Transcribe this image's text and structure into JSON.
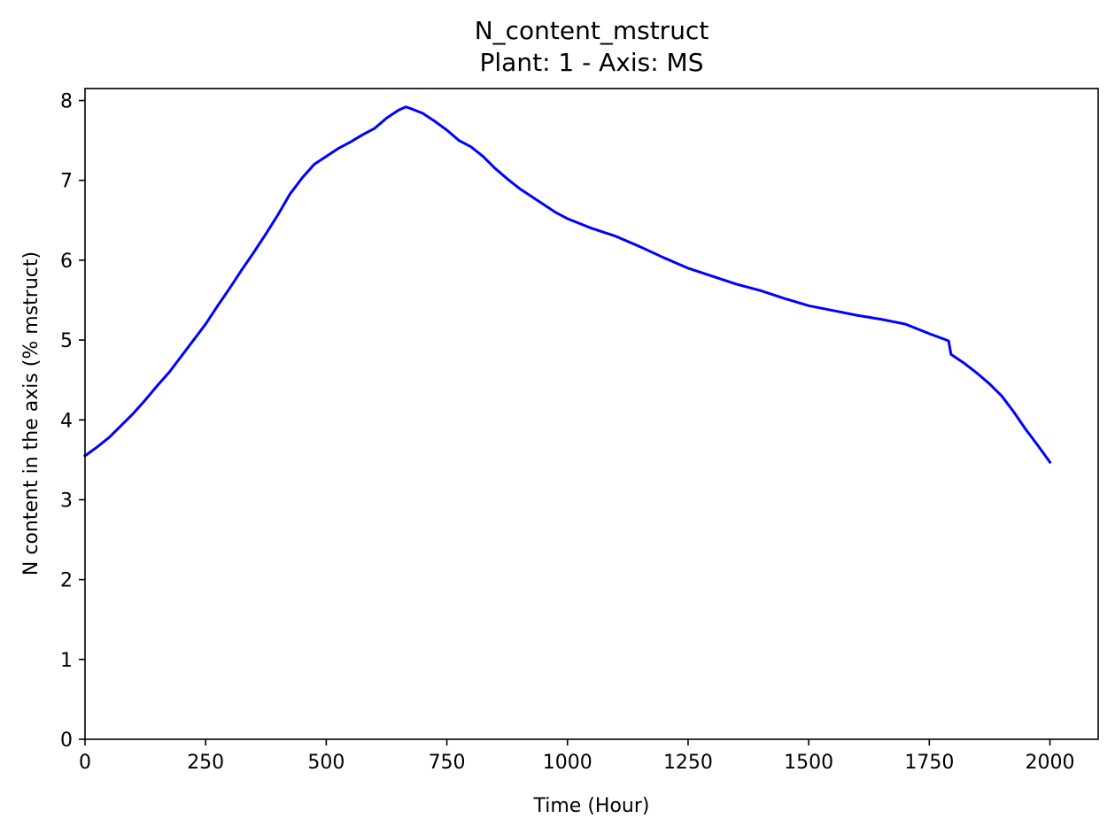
{
  "chart_data": {
    "type": "line",
    "title": "N_content_mstruct",
    "subtitle": "Plant: 1 - Axis: MS",
    "xlabel": "Time (Hour)",
    "ylabel": "N content in the axis (% mstruct)",
    "xlim": [
      0,
      2100
    ],
    "ylim": [
      0,
      8.15
    ],
    "xticks": [
      0,
      250,
      500,
      750,
      1000,
      1250,
      1500,
      1750,
      2000
    ],
    "yticks": [
      0,
      1,
      2,
      3,
      4,
      5,
      6,
      7,
      8
    ],
    "grid": false,
    "line_color": "#0000ff",
    "series": [
      {
        "x": [
          0,
          25,
          50,
          75,
          100,
          125,
          150,
          175,
          200,
          225,
          250,
          275,
          300,
          325,
          350,
          375,
          400,
          425,
          450,
          475,
          500,
          525,
          550,
          575,
          600,
          625,
          650,
          665,
          675,
          700,
          725,
          750,
          775,
          800,
          825,
          850,
          875,
          900,
          925,
          950,
          975,
          1000,
          1050,
          1100,
          1150,
          1200,
          1250,
          1300,
          1350,
          1400,
          1450,
          1500,
          1550,
          1600,
          1650,
          1700,
          1750,
          1790,
          1795,
          1820,
          1850,
          1875,
          1900,
          1925,
          1950,
          1975,
          2000
        ],
        "y": [
          3.55,
          3.66,
          3.78,
          3.93,
          4.08,
          4.25,
          4.43,
          4.6,
          4.8,
          5.0,
          5.2,
          5.43,
          5.65,
          5.88,
          6.1,
          6.33,
          6.57,
          6.83,
          7.03,
          7.2,
          7.3,
          7.4,
          7.48,
          7.57,
          7.65,
          7.78,
          7.88,
          7.92,
          7.9,
          7.84,
          7.74,
          7.63,
          7.5,
          7.42,
          7.3,
          7.15,
          7.02,
          6.9,
          6.8,
          6.7,
          6.6,
          6.52,
          6.4,
          6.3,
          6.17,
          6.03,
          5.9,
          5.8,
          5.7,
          5.62,
          5.52,
          5.43,
          5.37,
          5.31,
          5.26,
          5.2,
          5.08,
          4.99,
          4.82,
          4.72,
          4.58,
          4.45,
          4.3,
          4.1,
          3.88,
          3.68,
          3.47
        ]
      }
    ]
  }
}
